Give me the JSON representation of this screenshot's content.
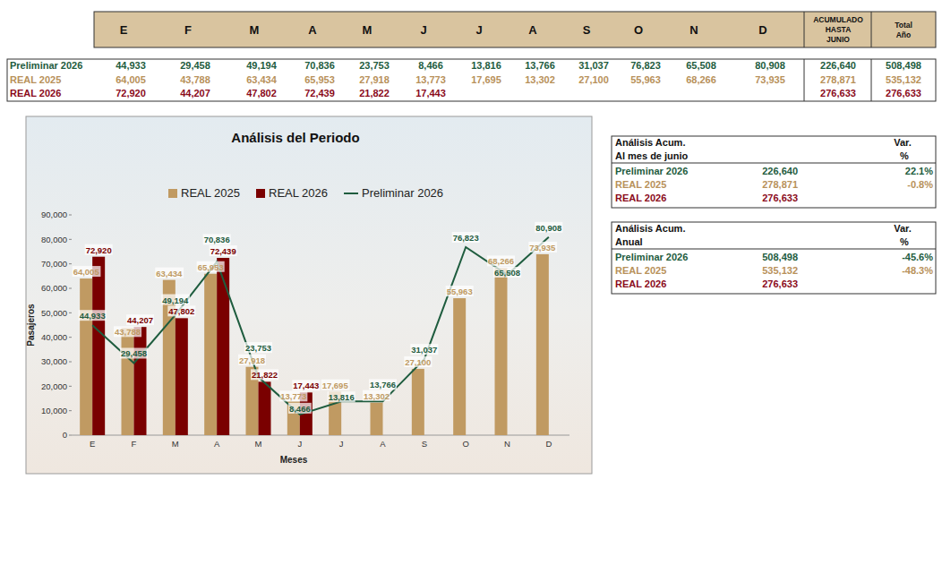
{
  "table": {
    "columns": [
      "E",
      "F",
      "M",
      "A",
      "M",
      "J",
      "J",
      "A",
      "S",
      "O",
      "N",
      "D",
      "ACUMULADO HASTA JUNIO",
      "Total Año"
    ],
    "rows": [
      {
        "label": "Preliminar 2026",
        "color": "#1e5c3e",
        "cells": [
          "44,933",
          "29,458",
          "49,194",
          "70,836",
          "23,753",
          "8,466",
          "13,816",
          "13,766",
          "31,037",
          "76,823",
          "65,508",
          "80,908",
          "226,640",
          "508,498"
        ]
      },
      {
        "label": "REAL 2025",
        "color": "#b8915a",
        "cells": [
          "64,005",
          "43,788",
          "63,434",
          "65,953",
          "27,918",
          "13,773",
          "17,695",
          "13,302",
          "27,100",
          "55,963",
          "68,266",
          "73,935",
          "278,871",
          "535,132"
        ]
      },
      {
        "label": "REAL 2026",
        "color": "#8b0a1a",
        "cells": [
          "72,920",
          "44,207",
          "47,802",
          "72,439",
          "21,822",
          "17,443",
          null,
          null,
          null,
          null,
          null,
          null,
          "276,633",
          "276,633"
        ]
      }
    ]
  },
  "chart_data": {
    "type": "bar",
    "title": "Análisis del Periodo",
    "x_label": "Meses",
    "y_label": "Pasajeros",
    "categories": [
      "E",
      "F",
      "M",
      "A",
      "M",
      "J",
      "J",
      "A",
      "S",
      "O",
      "N",
      "D"
    ],
    "series": [
      {
        "name": "REAL 2025",
        "type": "bar",
        "color": "#c09a62",
        "values": [
          64005,
          43788,
          63434,
          65953,
          27918,
          13773,
          17695,
          13302,
          27100,
          55963,
          68266,
          73935
        ],
        "value_labels": [
          "64,005",
          "43,788",
          "63,434",
          "65,953",
          "27,918",
          "13,773",
          "17,695",
          "13,302",
          "27,100",
          "55,963",
          "68,266",
          "73,935"
        ]
      },
      {
        "name": "REAL 2026",
        "type": "bar",
        "color": "#7a0000",
        "values": [
          72920,
          44207,
          47802,
          72439,
          21822,
          17443,
          null,
          null,
          null,
          null,
          null,
          null
        ],
        "value_labels": [
          "72,920",
          "44,207",
          "47,802",
          "72,439",
          "21,822",
          "17,443",
          null,
          null,
          null,
          null,
          null,
          null
        ]
      },
      {
        "name": "Preliminar 2026",
        "type": "line",
        "color": "#1e5c3e",
        "line_style": "solid",
        "marker": "none",
        "values": [
          44933,
          29458,
          49194,
          70836,
          23753,
          8466,
          13816,
          13766,
          31037,
          76823,
          65508,
          80908
        ],
        "value_labels": [
          "44,933",
          "29,458",
          "49,194",
          "70,836",
          "23,753",
          "8,466",
          "13,816",
          "13,766",
          "31,037",
          "76,823",
          "65,508",
          "80,908"
        ]
      }
    ],
    "ylim": [
      0,
      90000
    ],
    "yticks": [
      0,
      {
        "value": 10000,
        "label": "10,000"
      },
      {
        "value": 20000,
        "label": "20,000"
      },
      {
        "value": 30000,
        "label": "30,000"
      },
      {
        "value": 40000,
        "label": "40,000"
      },
      {
        "value": 50000,
        "label": "50,000"
      },
      {
        "value": 60000,
        "label": "60,000"
      },
      {
        "value": 70000,
        "label": "70,000"
      },
      {
        "value": 80000,
        "label": "80,000"
      },
      {
        "value": 90000,
        "label": "90,000"
      }
    ],
    "grid": false,
    "legend": "top",
    "data_labels": true
  },
  "analysis": [
    {
      "title": "Análisis  Acum.",
      "subtitle": "Al mes de junio",
      "var_header": "Var.",
      "var_unit": "%",
      "rows": [
        {
          "label": "Preliminar 2026",
          "color": "#1e5c3e",
          "value": "226,640",
          "var": "22.1%"
        },
        {
          "label": "REAL 2025",
          "color": "#b8915a",
          "value": "278,871",
          "var": "-0.8%"
        },
        {
          "label": "REAL 2026",
          "color": "#8b0a1a",
          "value": "276,633",
          "var": null
        }
      ]
    },
    {
      "title": "Análisis  Acum.",
      "subtitle": "Anual",
      "var_header": "Var.",
      "var_unit": "%",
      "rows": [
        {
          "label": "Preliminar 2026",
          "color": "#1e5c3e",
          "value": "508,498",
          "var": "-45.6%"
        },
        {
          "label": "REAL 2025",
          "color": "#b8915a",
          "value": "535,132",
          "var": "-48.3%"
        },
        {
          "label": "REAL 2026",
          "color": "#8b0a1a",
          "value": "276,633",
          "var": null
        }
      ]
    }
  ]
}
